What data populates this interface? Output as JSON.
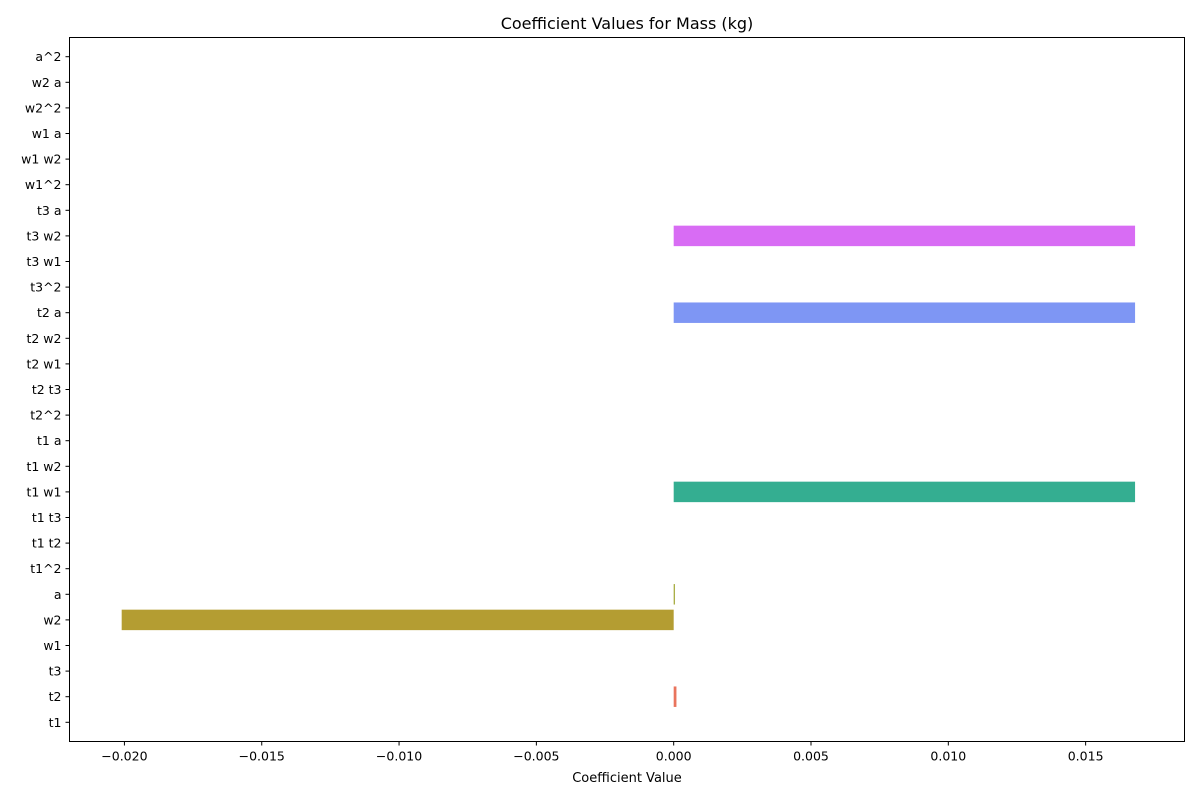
{
  "chart_data": {
    "type": "bar",
    "orientation": "horizontal",
    "title": "Coefficient Values for Mass (kg)",
    "xlabel": "Coefficient Value",
    "ylabel": "",
    "xlim": [
      -0.022,
      0.0186
    ],
    "grid": false,
    "legend": "none",
    "x_ticks": [
      -0.02,
      -0.015,
      -0.01,
      -0.005,
      0.0,
      0.005,
      0.01,
      0.015
    ],
    "x_tick_labels": [
      "−0.020",
      "−0.015",
      "−0.010",
      "−0.005",
      "0.000",
      "0.005",
      "0.010",
      "0.015"
    ],
    "categories": [
      "t1",
      "t2",
      "t3",
      "w1",
      "w2",
      "a",
      "t1^2",
      "t1 t2",
      "t1 t3",
      "t1 w1",
      "t1 w2",
      "t1 a",
      "t2^2",
      "t2 t3",
      "t2 w1",
      "t2 w2",
      "t2 a",
      "t3^2",
      "t3 w1",
      "t3 w2",
      "t3 a",
      "w1^2",
      "w1 w2",
      "w1 a",
      "w2^2",
      "w2 a",
      "a^2"
    ],
    "values": [
      0,
      0.0001,
      0,
      0,
      -0.0201,
      3e-05,
      0,
      0,
      0,
      0.0168,
      0,
      0,
      0,
      0,
      0,
      0,
      0.0168,
      0,
      0,
      0.0168,
      0,
      0,
      0,
      0,
      0,
      0,
      0
    ],
    "colors": [
      "#f77189",
      "#e9745d",
      "#dc8932",
      "#c69432",
      "#b49d32",
      "#a0a531",
      "#84ad31",
      "#50b131",
      "#33b07b",
      "#34ae91",
      "#35ada1",
      "#36abae",
      "#37aabb",
      "#38a9c7",
      "#3aa6d9",
      "#5ba0f0",
      "#7e96f4",
      "#9f8bf4",
      "#bb7df4",
      "#d86cf4",
      "#f05fd9",
      "#f465c0",
      "#f56ca7",
      "#f66f94",
      "#f77189",
      "#f77189",
      "#f77189"
    ]
  }
}
